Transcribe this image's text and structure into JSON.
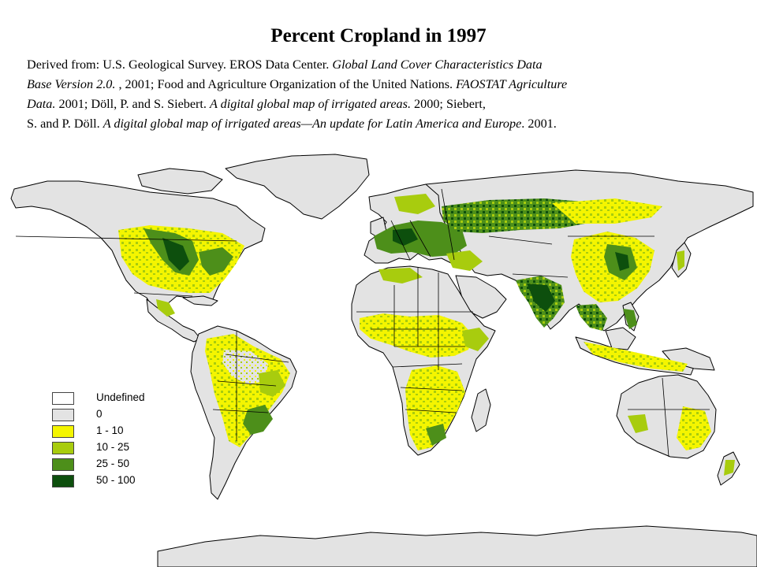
{
  "title": "Percent Cropland in 1997",
  "source_lines": [
    [
      {
        "text": "Derived from: U.S. Geological Survey. EROS Data Center. ",
        "italic": false
      },
      {
        "text": "Global Land Cover Characteristics Data",
        "italic": true
      }
    ],
    [
      {
        "text": " Base Version 2.0. ",
        "italic": true
      },
      {
        "text": ", 2001; Food and Agriculture Organization of the United Nations. ",
        "italic": false
      },
      {
        "text": "FAOSTAT Agriculture",
        "italic": true
      }
    ],
    [
      {
        "text": "Data. ",
        "italic": true
      },
      {
        "text": "2001; Döll, P. and S. Siebert. ",
        "italic": false
      },
      {
        "text": "A digital global map of irrigated areas.",
        "italic": true
      },
      {
        "text": " 2000; Siebert,",
        "italic": false
      }
    ],
    [
      {
        "text": "S. and P. Döll. ",
        "italic": false
      },
      {
        "text": "A digital global map of irrigated areas—An update for Latin America and Europe",
        "italic": true
      },
      {
        "text": ". 2001.",
        "italic": false
      }
    ]
  ],
  "legend": [
    {
      "label": "Undefined",
      "color": "#ffffff"
    },
    {
      "label": "0",
      "color": "#e3e3e3"
    },
    {
      "label": "1 - 10",
      "color": "#f4f500"
    },
    {
      "label": "10 - 25",
      "color": "#a8cc0e"
    },
    {
      "label": "25 - 50",
      "color": "#4d8f1a"
    },
    {
      "label": "50 - 100",
      "color": "#0d4f0d"
    }
  ]
}
